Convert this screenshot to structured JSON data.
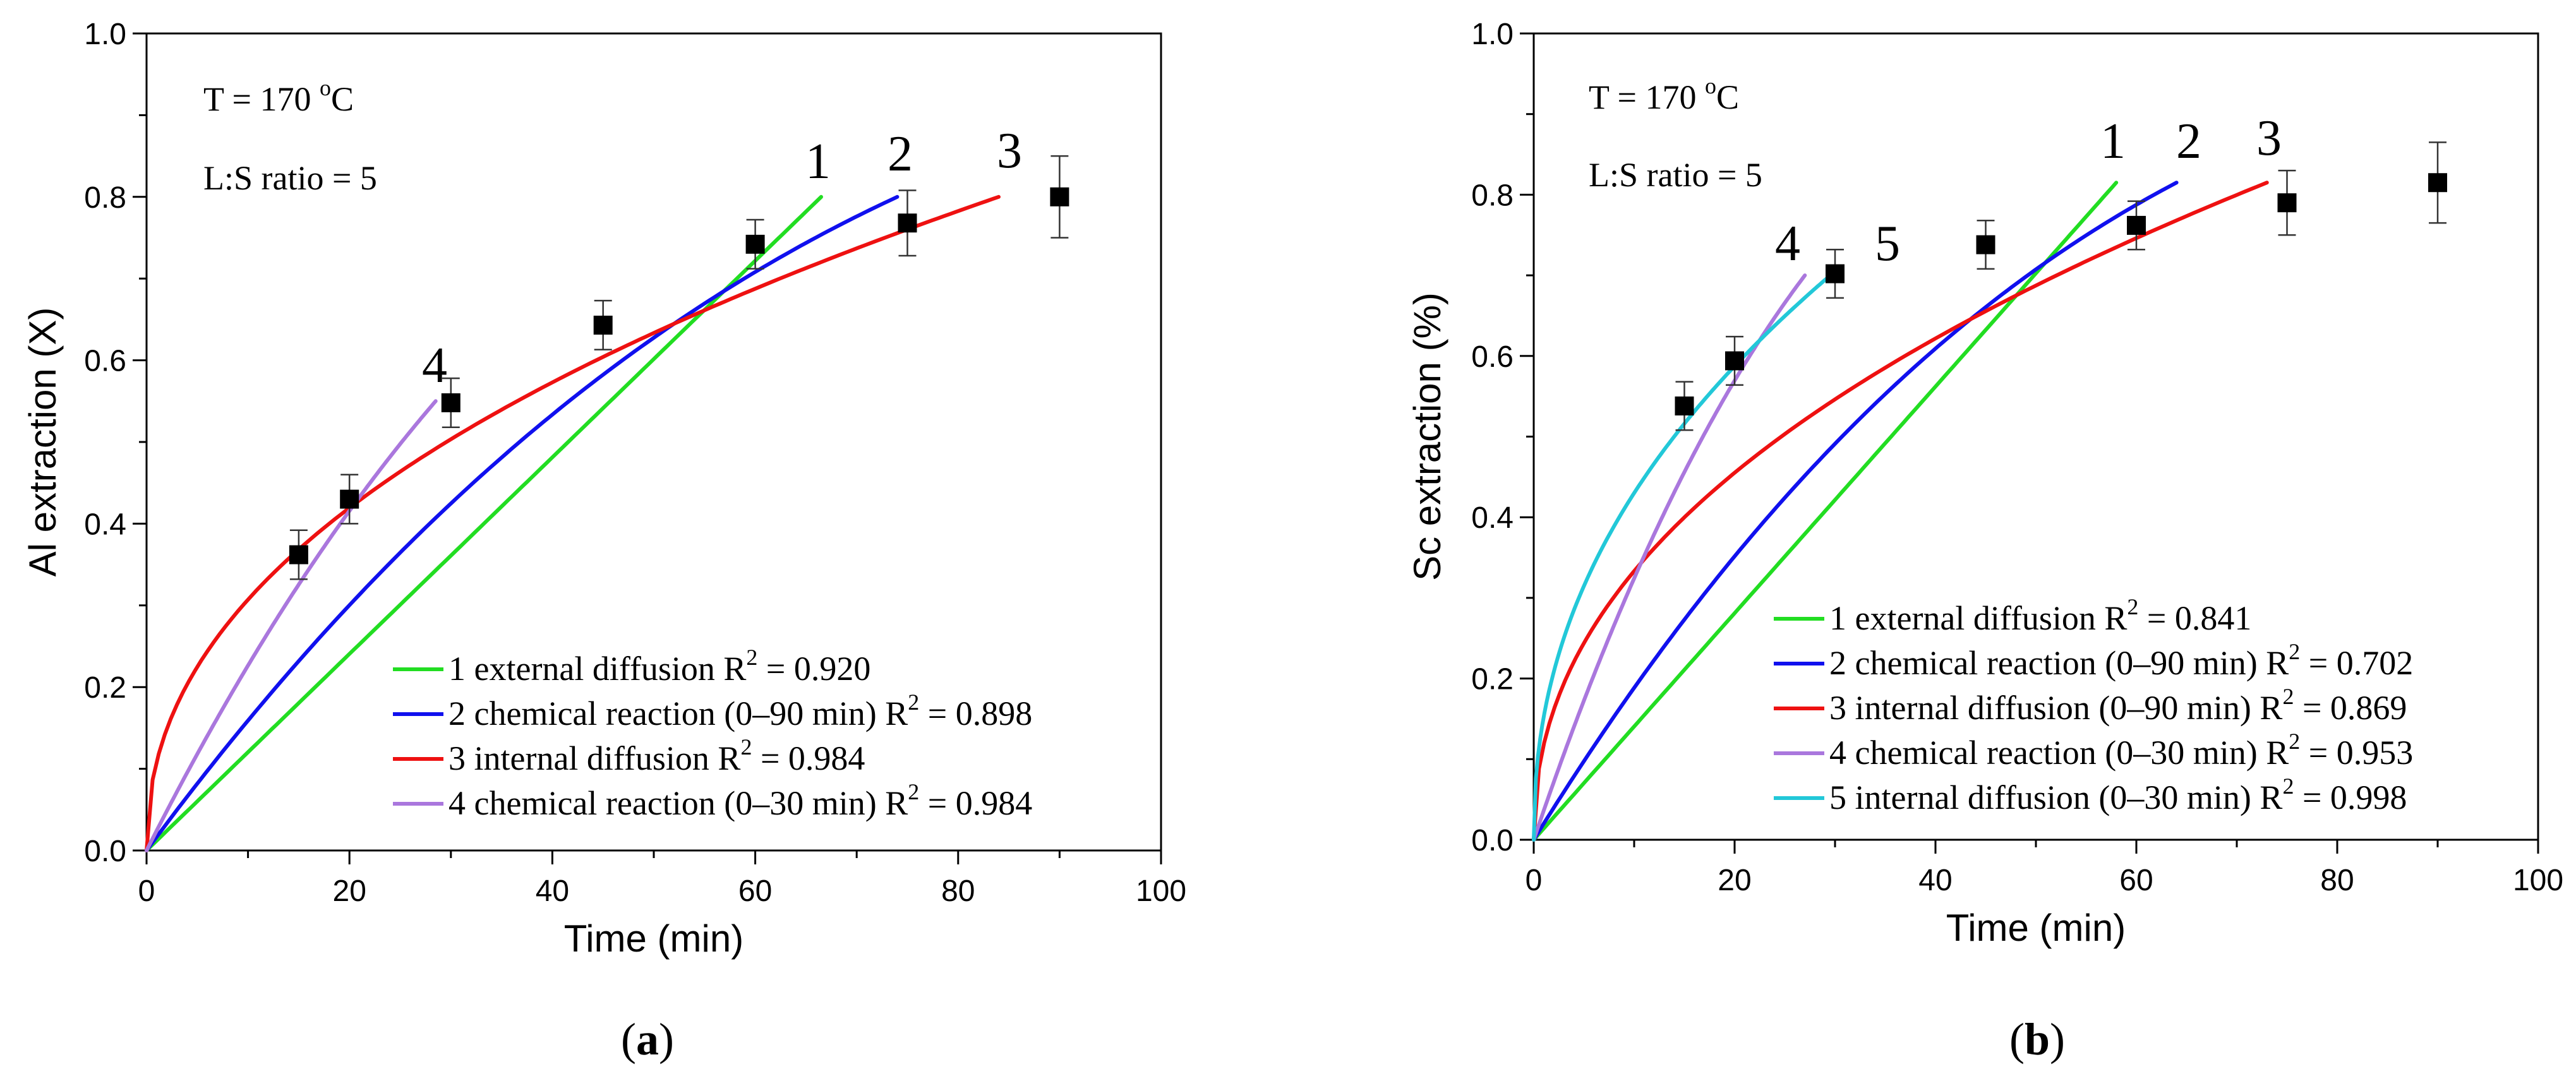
{
  "chart_data": [
    {
      "type": "line",
      "panel_label": "a",
      "xlabel": "Time (min)",
      "ylabel": "Al extraction (X)",
      "xlim": [
        0,
        100
      ],
      "ylim": [
        0,
        1.0
      ],
      "x_ticks": [
        0,
        20,
        40,
        60,
        80,
        100
      ],
      "y_ticks": [
        0.0,
        0.2,
        0.4,
        0.6,
        0.8,
        1.0
      ],
      "annotations": [
        "T = 170 ",
        "o",
        "C",
        "L:S ratio = 5"
      ],
      "grid": false,
      "legend_position": "bottom-right",
      "experimental": {
        "x": [
          15,
          20,
          30,
          45,
          60,
          75,
          90
        ],
        "y": [
          0.362,
          0.43,
          0.548,
          0.643,
          0.742,
          0.768,
          0.8
        ],
        "error": [
          0.03,
          0.03,
          0.03,
          0.03,
          0.03,
          0.04,
          0.05
        ]
      },
      "series": [
        {
          "curve": "1",
          "legend": "1 external diffusion R",
          "r2": " = 0.920",
          "model": "linear",
          "x_end": 66.5,
          "y_end": 0.8,
          "color": "#22dd22"
        },
        {
          "curve": "2",
          "legend": "2 chemical reaction (0–90 min) R",
          "r2": " = 0.898",
          "model": "chemical",
          "x_end": 74,
          "y_end": 0.8,
          "color": "#1010ee"
        },
        {
          "curve": "3",
          "legend": "3 internal diffusion R",
          "r2": " = 0.984",
          "model": "internal",
          "x_end": 84,
          "y_end": 0.8,
          "color": "#ee1111"
        },
        {
          "curve": "4",
          "legend": "4 chemical reaction (0–30 min) R",
          "r2": " = 0.984",
          "model": "chemical",
          "x_end": 28.5,
          "y_end": 0.55,
          "color": "#aa77dd"
        }
      ]
    },
    {
      "type": "line",
      "panel_label": "b",
      "xlabel": "Time (min)",
      "ylabel": "Sc extraction (%)",
      "xlim": [
        0,
        100
      ],
      "ylim": [
        0,
        1.0
      ],
      "x_ticks": [
        0,
        20,
        40,
        60,
        80,
        100
      ],
      "y_ticks": [
        0.0,
        0.2,
        0.4,
        0.6,
        0.8,
        1.0
      ],
      "annotations": [
        "T = 170 ",
        "o",
        "C",
        "L:S ratio = 5"
      ],
      "grid": false,
      "legend_position": "bottom-right",
      "experimental": {
        "x": [
          15,
          20,
          30,
          45,
          60,
          75,
          90
        ],
        "y": [
          0.538,
          0.594,
          0.702,
          0.738,
          0.762,
          0.79,
          0.815
        ],
        "error": [
          0.03,
          0.03,
          0.03,
          0.03,
          0.03,
          0.04,
          0.05
        ]
      },
      "series": [
        {
          "curve": "1",
          "legend": "1 external diffusion R",
          "r2": " = 0.841",
          "model": "linear",
          "x_end": 58,
          "y_end": 0.815,
          "color": "#22dd22"
        },
        {
          "curve": "2",
          "legend": "2 chemical reaction (0–90 min) R",
          "r2": " = 0.702",
          "model": "chemical",
          "x_end": 64,
          "y_end": 0.815,
          "color": "#1010ee"
        },
        {
          "curve": "3",
          "legend": "3 internal diffusion (0–90 min) R",
          "r2": " = 0.869",
          "model": "internal",
          "x_end": 73,
          "y_end": 0.815,
          "color": "#ee1111"
        },
        {
          "curve": "4",
          "legend": "4 chemical reaction (0–30 min) R",
          "r2": " = 0.953",
          "model": "chemical",
          "x_end": 27,
          "y_end": 0.7,
          "color": "#aa77dd"
        },
        {
          "curve": "5",
          "legend": "5 internal diffusion (0–30 min) R",
          "r2": " = 0.998",
          "model": "internal",
          "x_end": 30,
          "y_end": 0.705,
          "color": "#22c8d8"
        }
      ]
    }
  ]
}
